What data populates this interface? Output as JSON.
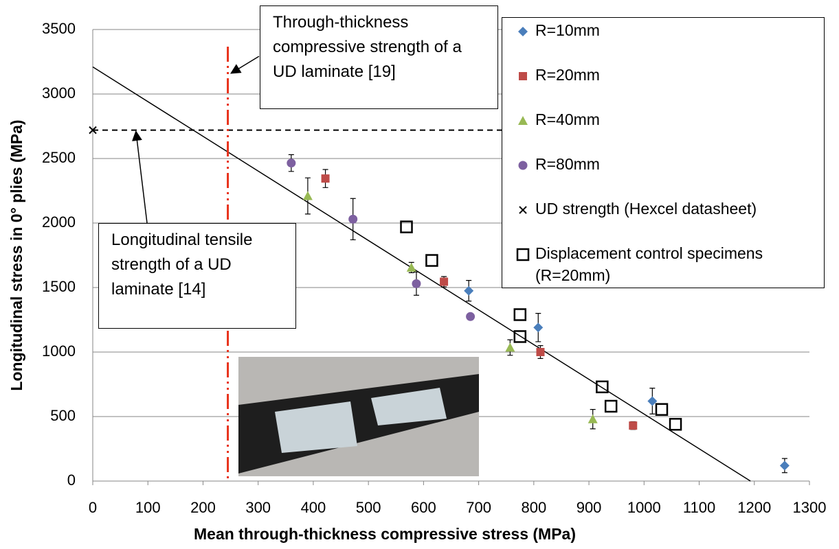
{
  "chart_data": {
    "type": "scatter",
    "xlabel": "Mean through-thickness compressive stress (MPa)",
    "ylabel": "Longitudinal stress in 0° plies (MPa)",
    "xlim": [
      0,
      1300
    ],
    "xticks": [
      0,
      100,
      200,
      300,
      400,
      500,
      600,
      700,
      800,
      900,
      1000,
      1100,
      1200,
      1300
    ],
    "ylim": [
      0,
      3500
    ],
    "yticks": [
      0,
      500,
      1000,
      1500,
      2000,
      2500,
      3000,
      3500
    ],
    "grid": true,
    "series": [
      {
        "name": "R=10mm",
        "color": "#4a7ebb",
        "marker": "diamond",
        "x": [
          682,
          808,
          1015,
          1255
        ],
        "values": [
          1475,
          1190,
          620,
          120
        ],
        "errors": [
          80,
          110,
          100,
          55
        ]
      },
      {
        "name": "R=20mm",
        "color": "#be4b48",
        "marker": "square",
        "x": [
          422,
          637,
          812,
          980
        ],
        "values": [
          2345,
          1545,
          1000,
          430
        ],
        "errors": [
          70,
          40,
          50,
          30
        ]
      },
      {
        "name": "R=40mm",
        "color": "#98b954",
        "marker": "triangle",
        "x": [
          390,
          578,
          757,
          907
        ],
        "values": [
          2210,
          1655,
          1035,
          480
        ],
        "errors": [
          140,
          40,
          60,
          75
        ]
      },
      {
        "name": "R=80mm",
        "color": "#7d60a0",
        "marker": "circle",
        "x": [
          360,
          472,
          587,
          685
        ],
        "values": [
          2465,
          2030,
          1530,
          1275
        ],
        "errors": [
          65,
          160,
          90,
          0
        ]
      },
      {
        "name": "UD strength (Hexcel datasheet)",
        "color": "#000000",
        "marker": "x",
        "x": [
          0
        ],
        "values": [
          2720
        ]
      },
      {
        "name": "Displacement control specimens (R=20mm)",
        "color": "#000000",
        "marker": "open-square",
        "x": [
          569,
          615,
          775,
          775,
          924,
          940,
          1032,
          1057
        ],
        "values": [
          1970,
          1710,
          1290,
          1120,
          730,
          580,
          555,
          440
        ]
      }
    ],
    "trend_line": {
      "x": [
        0,
        1193
      ],
      "values": [
        3210,
        0
      ],
      "color": "#000000"
    },
    "ud_strength_line": {
      "x": [
        0,
        742
      ],
      "value": 2720,
      "color": "#000000"
    },
    "tt_strength_line": {
      "value": 245,
      "color": "#e8311a"
    },
    "annotations": [
      {
        "text": "Through-thickness compressive strength of a UD laminate [19]"
      },
      {
        "text": "Longitudinal tensile strength of a UD laminate [14]"
      }
    ]
  }
}
